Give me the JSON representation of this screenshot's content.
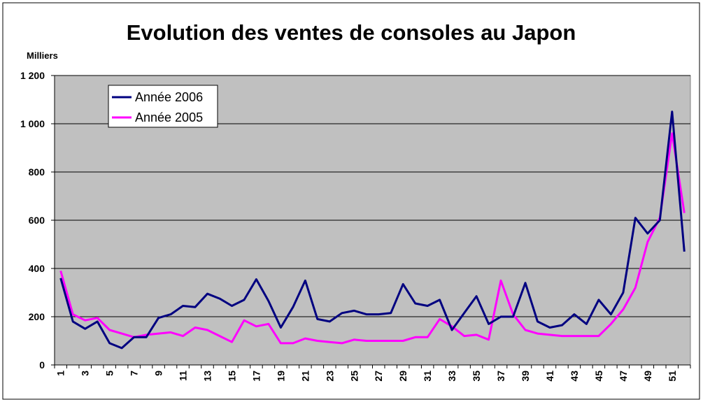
{
  "colors": {
    "plot_background": "#c0c0c0",
    "series_2006": "#000080",
    "series_2005": "#ff00ff",
    "gridline": "#000000"
  },
  "chart_data": {
    "type": "line",
    "title": "Evolution des ventes de consoles au Japon",
    "ylabel": "Milliers",
    "xlabel": "",
    "ylim": [
      0,
      1200
    ],
    "y_ticks": [
      0,
      200,
      400,
      600,
      800,
      1000,
      1200
    ],
    "y_tick_labels": [
      "0",
      "200",
      "400",
      "600",
      "800",
      "1 000",
      "1 200"
    ],
    "grid": true,
    "legend_position": "top-left",
    "x": [
      1,
      2,
      3,
      4,
      5,
      6,
      7,
      8,
      9,
      10,
      11,
      12,
      13,
      14,
      15,
      16,
      17,
      18,
      19,
      20,
      21,
      22,
      23,
      24,
      25,
      26,
      27,
      28,
      29,
      30,
      31,
      32,
      33,
      34,
      35,
      36,
      37,
      38,
      39,
      40,
      41,
      42,
      43,
      44,
      45,
      46,
      47,
      48,
      49,
      50,
      51,
      52
    ],
    "x_tick_labels": [
      "1",
      "3",
      "5",
      "7",
      "9",
      "11",
      "13",
      "15",
      "17",
      "19",
      "21",
      "23",
      "25",
      "27",
      "29",
      "31",
      "33",
      "35",
      "37",
      "39",
      "41",
      "43",
      "45",
      "47",
      "49",
      "51"
    ],
    "series": [
      {
        "name": "Année 2006",
        "values": [
          360,
          180,
          150,
          180,
          90,
          70,
          115,
          115,
          195,
          210,
          245,
          240,
          295,
          275,
          245,
          270,
          355,
          265,
          155,
          240,
          350,
          190,
          180,
          215,
          225,
          210,
          210,
          215,
          335,
          255,
          245,
          270,
          145,
          215,
          285,
          170,
          200,
          200,
          340,
          180,
          155,
          165,
          210,
          170,
          270,
          210,
          300,
          610,
          545,
          600,
          1050,
          470
        ]
      },
      {
        "name": "Année 2005",
        "values": [
          390,
          210,
          185,
          195,
          145,
          130,
          115,
          125,
          130,
          135,
          120,
          155,
          145,
          120,
          95,
          185,
          160,
          170,
          90,
          90,
          110,
          100,
          95,
          90,
          105,
          100,
          100,
          100,
          100,
          115,
          115,
          190,
          160,
          120,
          125,
          105,
          350,
          210,
          145,
          130,
          125,
          120,
          120,
          120,
          120,
          170,
          230,
          320,
          510,
          610,
          960,
          630
        ]
      }
    ]
  }
}
